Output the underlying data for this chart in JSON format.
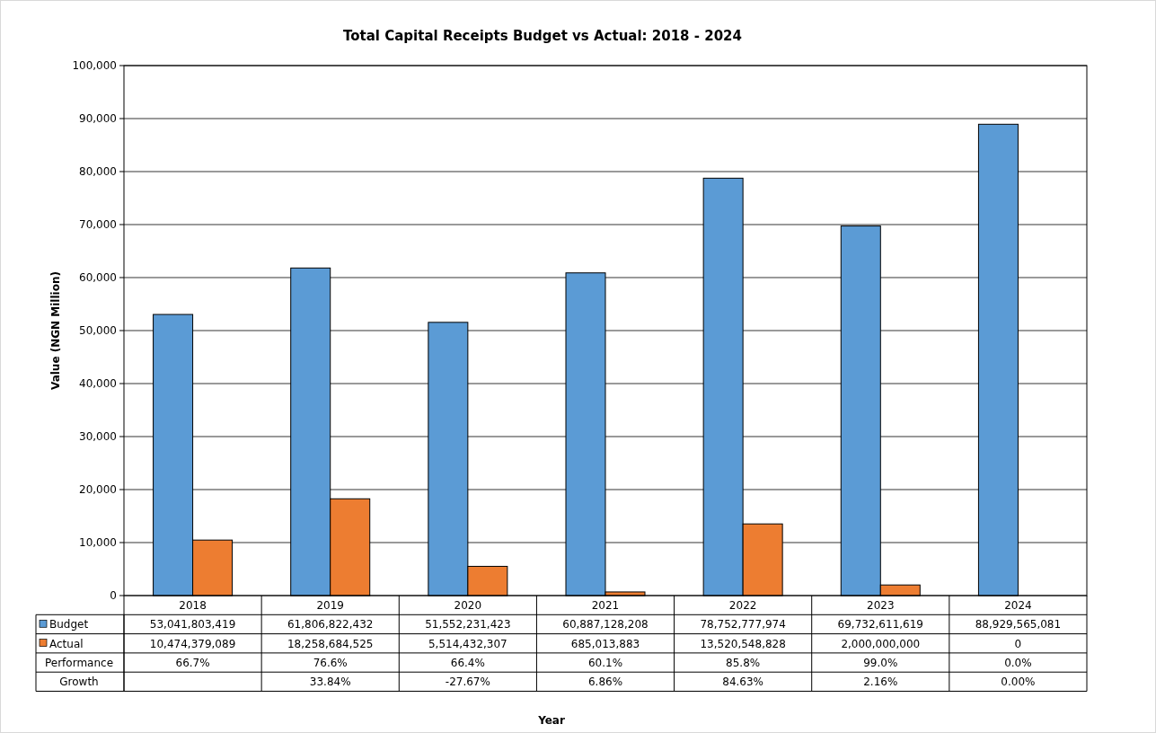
{
  "chart_data": {
    "type": "bar",
    "title": "Total Capital Receipts Budget vs Actual: 2018 - 2024",
    "ylabel": "Value (NGN Million)",
    "categories": [
      "2018",
      "2019",
      "2020",
      "2021",
      "2022",
      "2023",
      "2024"
    ],
    "series": [
      {
        "name": "Budget",
        "color": "#5b9bd5",
        "values": [
          53041.803419,
          61806.822432,
          51552.231423,
          60887.128208,
          78752.777974,
          69732.611619,
          88929.565081
        ]
      },
      {
        "name": "Actual",
        "color": "#ed7d31",
        "values": [
          10474.379089,
          18258.684525,
          5514.432307,
          685.013883,
          13520.548828,
          2000,
          0
        ]
      }
    ],
    "ylim": [
      0,
      100000
    ],
    "yticks": [
      0,
      {
        "value": 10000,
        "label": "10,000"
      },
      {
        "value": 20000,
        "label": "20,000"
      },
      {
        "value": 30000,
        "label": "30,000"
      },
      {
        "value": 40000,
        "label": "40,000"
      },
      {
        "value": 50000,
        "label": "50,000"
      },
      {
        "value": 60000,
        "label": "60,000"
      },
      {
        "value": 70000,
        "label": "70,000"
      },
      {
        "value": 80000,
        "label": "80,000"
      },
      {
        "value": 90000,
        "label": "90,000"
      },
      {
        "value": 100000,
        "label": "100,000"
      }
    ],
    "grid": "y",
    "legend": "left",
    "annotations": [
      "53,041,803,419",
      "61,806,822,432",
      "51,552,231,423",
      "60,887,128,208",
      "78,752,777,974",
      "69,732,611,619",
      "88,929,565,081",
      "10,474,379,089",
      "18,258,684,525",
      "5,514,432,307",
      "685,013,883",
      "13,520,548,828",
      "2,000,000,000",
      "0",
      "Performance",
      "66.7%",
      "76.6%",
      "66.4%",
      "60.1%",
      "85.8%",
      "99.0%",
      "0.0%",
      {
        "text": "Year"
      },
      "Growth",
      "33.84%",
      "-27.67%",
      "6.86%",
      "84.63%",
      "2.16%",
      "0.00%"
    ]
  }
}
